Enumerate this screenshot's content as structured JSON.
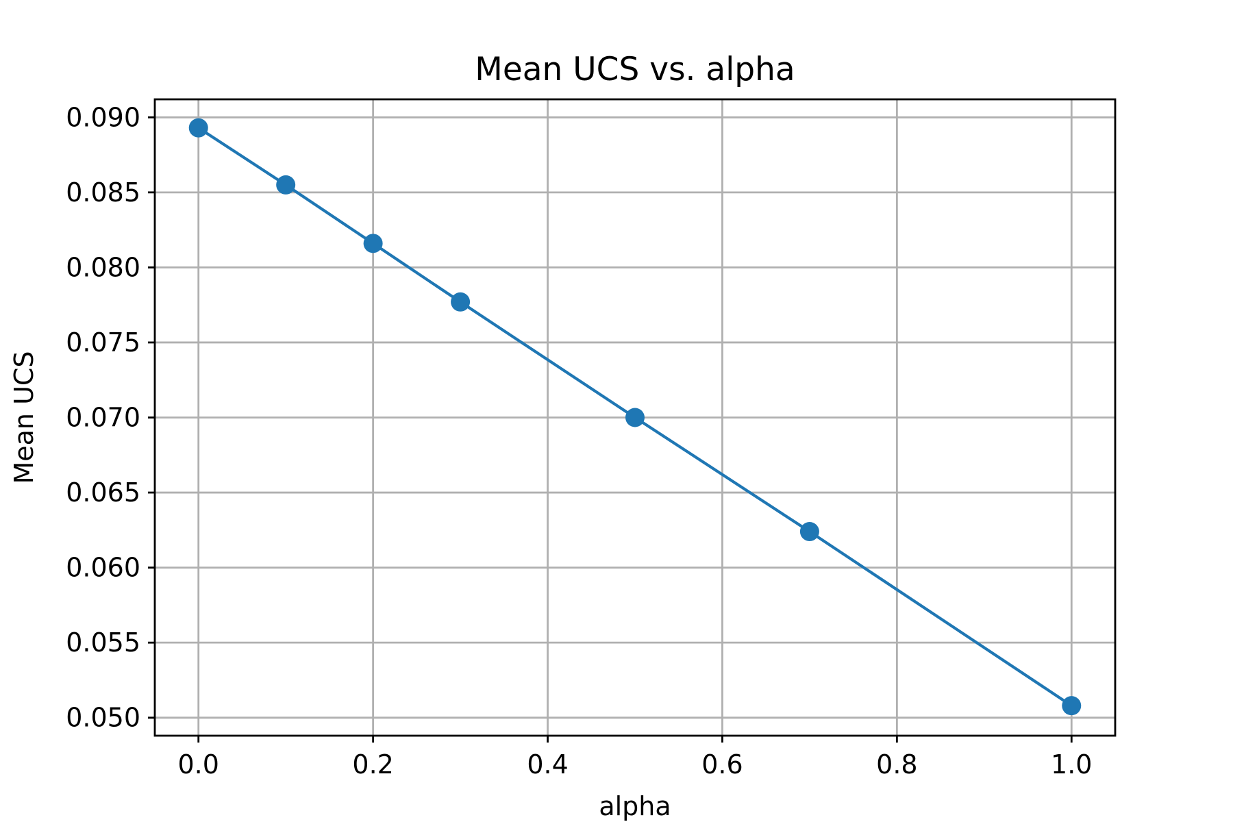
{
  "chart_data": {
    "type": "line",
    "title": "Mean UCS vs. alpha",
    "xlabel": "alpha",
    "ylabel": "Mean UCS",
    "xlim": [
      -0.05,
      1.05
    ],
    "ylim": [
      0.0488,
      0.0912
    ],
    "x_ticks": [
      0.0,
      0.2,
      0.4,
      0.6,
      0.8,
      1.0
    ],
    "x_tick_labels": [
      "0.0",
      "0.2",
      "0.4",
      "0.6",
      "0.8",
      "1.0"
    ],
    "y_ticks": [
      0.05,
      0.055,
      0.06,
      0.065,
      0.07,
      0.075,
      0.08,
      0.085,
      0.09
    ],
    "y_tick_labels": [
      "0.050",
      "0.055",
      "0.060",
      "0.065",
      "0.070",
      "0.075",
      "0.080",
      "0.085",
      "0.090"
    ],
    "grid": true,
    "series": [
      {
        "color": "#1f77b4",
        "marker": "circle",
        "x": [
          0.0,
          0.1,
          0.2,
          0.3,
          0.5,
          0.7,
          1.0
        ],
        "y": [
          0.0893,
          0.0855,
          0.0816,
          0.0777,
          0.07,
          0.0624,
          0.0508
        ]
      }
    ]
  }
}
